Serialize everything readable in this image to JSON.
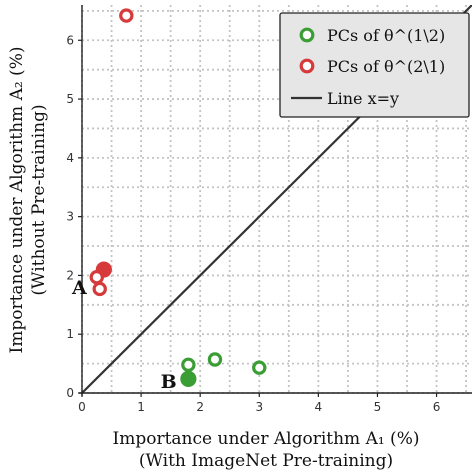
{
  "chart_data": {
    "type": "scatter",
    "x_label_line1": "Importance under Algorithm A₁ (%)",
    "x_label_line2": "(With ImageNet Pre-training)",
    "y_label_line1": "Importance under Algorithm A₂ (%)",
    "y_label_line2": "(Without Pre-training)",
    "xlim": [
      0,
      6.6
    ],
    "ylim": [
      0,
      6.6
    ],
    "x_ticks": [
      "0",
      "1",
      "2",
      "3",
      "4",
      "5",
      "6"
    ],
    "y_ticks": [
      "0",
      "1",
      "2",
      "3",
      "4",
      "5",
      "6"
    ],
    "grid": true,
    "legend_position": "top-right",
    "series": [
      {
        "name": "PCs of θ^(1\\2)",
        "color": "#3a9e35",
        "points": [
          [
            1.8,
            0.48
          ],
          [
            2.25,
            0.57
          ],
          [
            3.0,
            0.43
          ],
          [
            1.8,
            0.24
          ]
        ],
        "filled_index": 3
      },
      {
        "name": "PCs of θ^(2\\1)",
        "color": "#d63a3a",
        "points": [
          [
            0.75,
            6.42
          ],
          [
            0.37,
            2.1
          ],
          [
            0.25,
            1.97
          ],
          [
            0.3,
            1.77
          ]
        ],
        "filled_index": 1
      }
    ],
    "reference_line": {
      "name": "Line x=y",
      "color": "#333333"
    },
    "annotations": [
      {
        "text": "A",
        "x": 0.0,
        "y": 1.8
      },
      {
        "text": "B",
        "x": 1.5,
        "y": 0.2
      }
    ]
  }
}
